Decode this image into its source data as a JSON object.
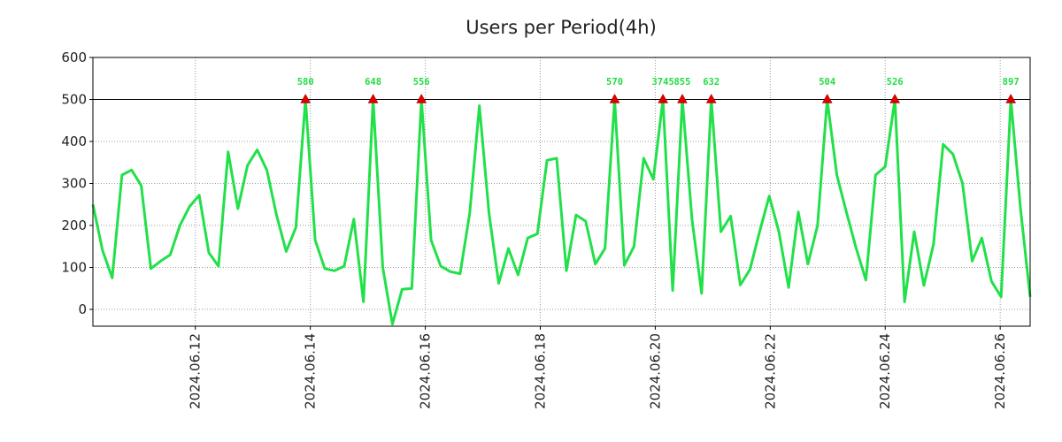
{
  "chart_data": {
    "type": "line",
    "title": "Users per Period(4h)",
    "xlabel": "",
    "ylabel": "",
    "ylim": [
      -40,
      600
    ],
    "xlim": [
      0,
      97
    ],
    "y_ticks": [
      0,
      100,
      200,
      300,
      400,
      500,
      600
    ],
    "x_tick_positions": [
      10.6,
      22.5,
      34.4,
      46.3,
      58.2,
      70.1,
      82.0,
      93.9
    ],
    "x_tick_labels": [
      "2024.06.12",
      "2024.06.14",
      "2024.06.16",
      "2024.06.18",
      "2024.06.20",
      "2024.06.22",
      "2024.06.24",
      "2024.06.26"
    ],
    "grid": true,
    "threshold": 500,
    "line_color": "#22e04a",
    "marker_color": "#dd0000",
    "label_color": "#22dd44",
    "values": [
      250,
      140,
      75,
      320,
      332,
      295,
      97,
      115,
      130,
      200,
      245,
      272,
      135,
      103,
      375,
      240,
      343,
      380,
      332,
      225,
      138,
      195,
      500,
      165,
      97,
      92,
      103,
      215,
      18,
      500,
      100,
      -35,
      48,
      50,
      500,
      165,
      103,
      90,
      85,
      230,
      485,
      228,
      62,
      145,
      82,
      170,
      180,
      355,
      360,
      92,
      225,
      210,
      108,
      145,
      500,
      105,
      150,
      360,
      310,
      500,
      45,
      500,
      215,
      38,
      500,
      185,
      222,
      58,
      95,
      185,
      270,
      185,
      52,
      232,
      108,
      200,
      500,
      320,
      230,
      145,
      70,
      320,
      340,
      500,
      18,
      185,
      57,
      155,
      393,
      370,
      300,
      115,
      170,
      67,
      30,
      500,
      240,
      30
    ],
    "peaks": [
      {
        "x": 22,
        "label": "580"
      },
      {
        "x": 29,
        "label": "648"
      },
      {
        "x": 34,
        "label": "556"
      },
      {
        "x": 54,
        "label": "570"
      },
      {
        "x": 59,
        "label": "3745"
      },
      {
        "x": 61,
        "label": "855"
      },
      {
        "x": 64,
        "label": "632"
      },
      {
        "x": 76,
        "label": "504"
      },
      {
        "x": 83,
        "label": "526"
      },
      {
        "x": 95,
        "label": "897"
      }
    ]
  }
}
